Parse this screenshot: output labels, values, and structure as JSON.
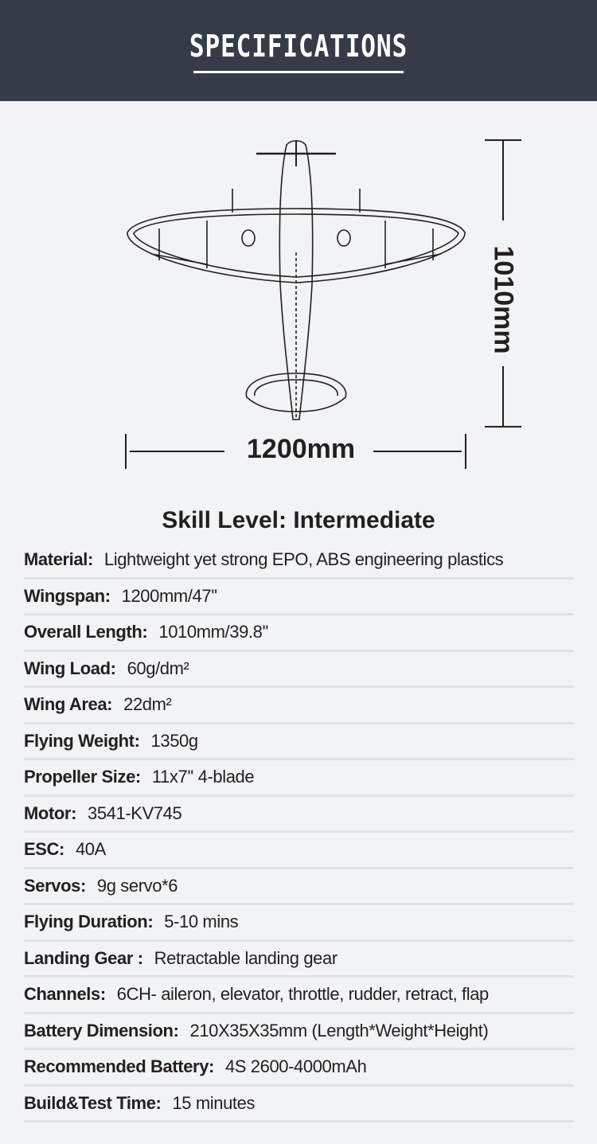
{
  "header": {
    "title": "SPECIFICATIONS"
  },
  "drawing": {
    "height_label": "1010mm",
    "width_label": "1200mm"
  },
  "skill_level": "Skill Level: Intermediate",
  "specs": [
    {
      "label": "Material:",
      "value": "Lightweight yet strong EPO, ABS engineering plastics"
    },
    {
      "label": "Wingspan:",
      "value": "1200mm/47''"
    },
    {
      "label": "Overall Length:",
      "value": "1010mm/39.8''"
    },
    {
      "label": "Wing Load:",
      "value": "60g/dm²"
    },
    {
      "label": "Wing Area:",
      "value": "22dm²"
    },
    {
      "label": "Flying Weight:",
      "value": "1350g"
    },
    {
      "label": "Propeller Size:",
      "value": "11x7'' 4-blade"
    },
    {
      "label": "Motor:",
      "value": "3541-KV745"
    },
    {
      "label": "ESC:",
      "value": "40A"
    },
    {
      "label": "Servos:",
      "value": "9g servo*6"
    },
    {
      "label": "Flying Duration:",
      "value": "5-10 mins"
    },
    {
      "label": "Landing Gear :",
      "value": "Retractable landing gear"
    },
    {
      "label": "Channels:",
      "value": "6CH- aileron, elevator, throttle,  rudder, retract, flap"
    },
    {
      "label": "Battery Dimension:",
      "value": "210X35X35mm (Length*Weight*Height)"
    },
    {
      "label": "Recommended Battery:",
      "value": "4S 2600-4000mAh"
    },
    {
      "label": "Build&Test Time:",
      "value": "15 minutes"
    }
  ]
}
